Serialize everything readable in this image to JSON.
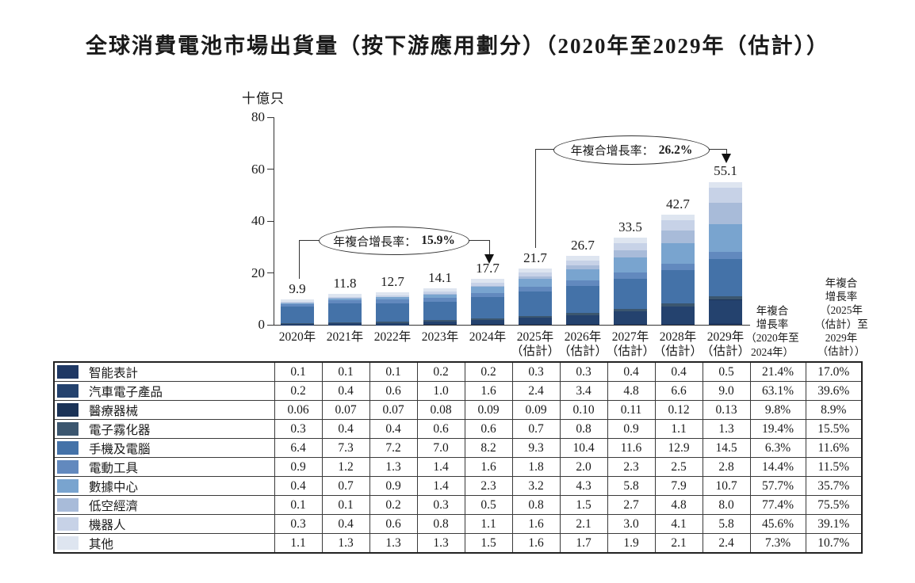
{
  "title": "全球消費電池市場出貨量（按下游應用劃分）（2020年至2029年（估計））",
  "chart_data": {
    "type": "bar",
    "stacked": true,
    "title": "全球消費電池市場出貨量（按下游應用劃分）（2020年至2029年（估計））",
    "unit_label": "十億只",
    "xlabel": "",
    "ylabel": "十億只",
    "ylim": [
      0,
      80
    ],
    "yticks": [
      0,
      20,
      40,
      60,
      80
    ],
    "grid": false,
    "legend_position": "table-rows-left",
    "categories": [
      "2020年",
      "2021年",
      "2022年",
      "2023年",
      "2024年",
      "2025年（估計）",
      "2026年（估計）",
      "2027年（估計）",
      "2028年（估計）",
      "2029年（估計）"
    ],
    "x_labels_lines": [
      [
        "2020年"
      ],
      [
        "2021年"
      ],
      [
        "2022年"
      ],
      [
        "2023年"
      ],
      [
        "2024年"
      ],
      [
        "2025年",
        "（估計）"
      ],
      [
        "2026年",
        "（估計）"
      ],
      [
        "2027年",
        "（估計）"
      ],
      [
        "2028年",
        "（估計）"
      ],
      [
        "2029年",
        "（估計）"
      ]
    ],
    "totals": [
      "9.9",
      "11.8",
      "12.7",
      "14.1",
      "17.7",
      "21.7",
      "26.7",
      "33.5",
      "42.7",
      "55.1"
    ],
    "series": [
      {
        "name": "智能表計",
        "color": "#1F3864",
        "values": [
          "0.1",
          "0.1",
          "0.1",
          "0.2",
          "0.2",
          "0.3",
          "0.3",
          "0.4",
          "0.4",
          "0.5"
        ],
        "cagr_2020_2024": "21.4%",
        "cagr_2025_2029": "17.0%"
      },
      {
        "name": "汽車電子產品",
        "color": "#24426E",
        "values": [
          "0.2",
          "0.4",
          "0.6",
          "1.0",
          "1.6",
          "2.4",
          "3.4",
          "4.8",
          "6.6",
          "9.0"
        ],
        "cagr_2020_2024": "63.1%",
        "cagr_2025_2029": "39.6%"
      },
      {
        "name": "醫療器械",
        "color": "#1B3357",
        "values": [
          "0.06",
          "0.07",
          "0.07",
          "0.08",
          "0.09",
          "0.09",
          "0.10",
          "0.11",
          "0.12",
          "0.13"
        ],
        "cagr_2020_2024": "9.8%",
        "cagr_2025_2029": "8.9%"
      },
      {
        "name": "電子霧化器",
        "color": "#3B566F",
        "values": [
          "0.3",
          "0.4",
          "0.4",
          "0.6",
          "0.6",
          "0.7",
          "0.8",
          "0.9",
          "1.1",
          "1.3"
        ],
        "cagr_2020_2024": "19.4%",
        "cagr_2025_2029": "15.5%"
      },
      {
        "name": "手機及電腦",
        "color": "#4472A8",
        "values": [
          "6.4",
          "7.3",
          "7.2",
          "7.0",
          "8.2",
          "9.3",
          "10.4",
          "11.6",
          "12.9",
          "14.5"
        ],
        "cagr_2020_2024": "6.3%",
        "cagr_2025_2029": "11.6%"
      },
      {
        "name": "電動工具",
        "color": "#6289BE",
        "values": [
          "0.9",
          "1.2",
          "1.3",
          "1.4",
          "1.6",
          "1.8",
          "2.0",
          "2.3",
          "2.5",
          "2.8"
        ],
        "cagr_2020_2024": "14.4%",
        "cagr_2025_2029": "11.5%"
      },
      {
        "name": "數據中心",
        "color": "#79A4CF",
        "values": [
          "0.4",
          "0.7",
          "0.9",
          "1.4",
          "2.3",
          "3.2",
          "4.3",
          "5.8",
          "7.9",
          "10.7"
        ],
        "cagr_2020_2024": "57.7%",
        "cagr_2025_2029": "35.7%"
      },
      {
        "name": "低空經濟",
        "color": "#A8BBD9",
        "values": [
          "0.1",
          "0.1",
          "0.2",
          "0.3",
          "0.5",
          "0.8",
          "1.5",
          "2.7",
          "4.8",
          "8.0"
        ],
        "cagr_2020_2024": "77.4%",
        "cagr_2025_2029": "75.5%"
      },
      {
        "name": "機器人",
        "color": "#C7D2E7",
        "values": [
          "0.3",
          "0.4",
          "0.6",
          "0.8",
          "1.1",
          "1.6",
          "2.1",
          "3.0",
          "4.1",
          "5.8"
        ],
        "cagr_2020_2024": "45.6%",
        "cagr_2025_2029": "39.1%"
      },
      {
        "name": "其他",
        "color": "#DEE5F0",
        "values": [
          "1.1",
          "1.3",
          "1.3",
          "1.3",
          "1.5",
          "1.6",
          "1.7",
          "1.9",
          "2.1",
          "2.4"
        ],
        "cagr_2020_2024": "7.3%",
        "cagr_2025_2029": "10.7%"
      }
    ],
    "annotations": [
      {
        "prefix": "年複合增長率：",
        "value": "15.9%"
      },
      {
        "prefix": "年複合增長率：",
        "value": "26.2%"
      }
    ]
  },
  "table": {
    "cagr_header_1_lines": [
      "年複合",
      "增長率",
      "（2020年至",
      "2024年）"
    ],
    "cagr_header_2_lines": [
      "年複合",
      "增長率",
      "（2025年",
      "（估計）至",
      "2029年",
      "（估計））"
    ]
  }
}
